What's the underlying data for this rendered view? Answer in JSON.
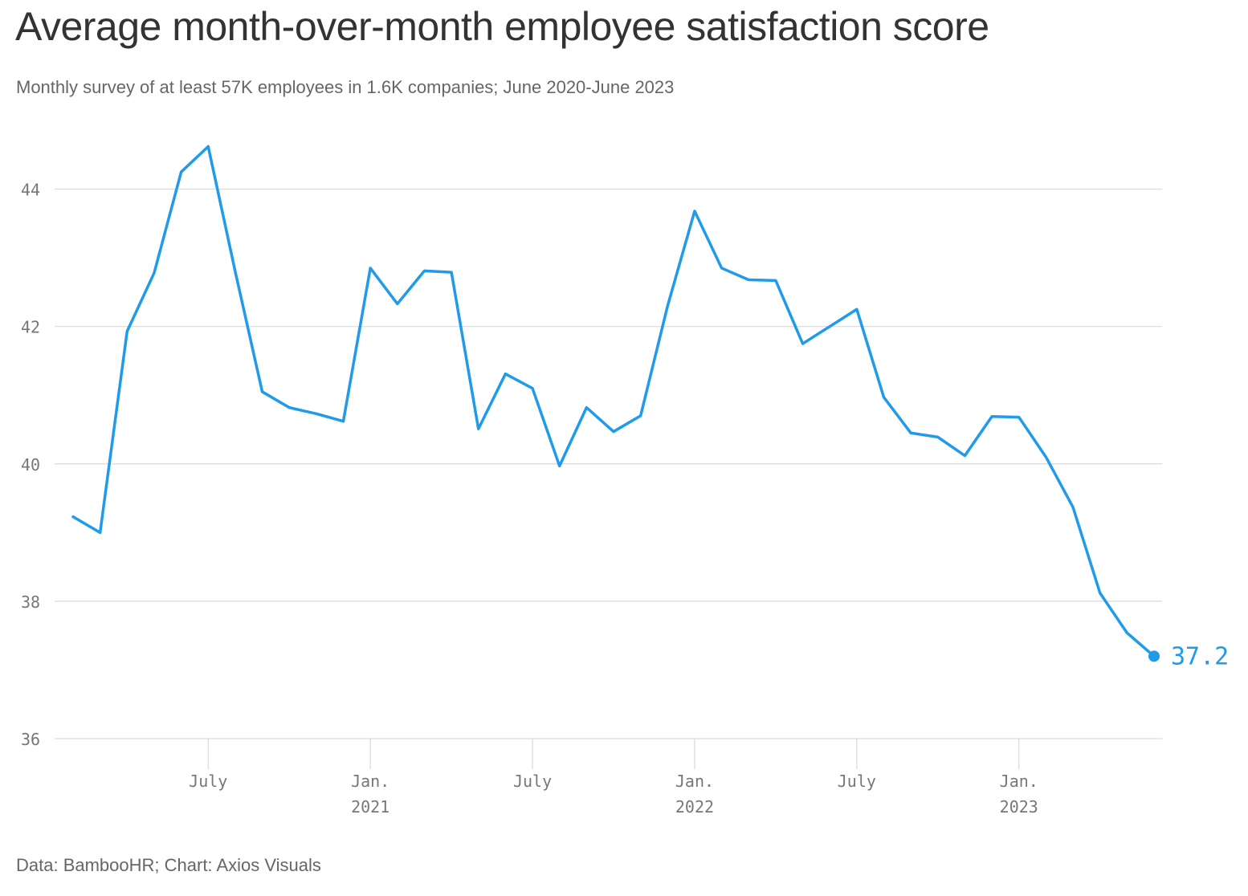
{
  "title": "Average month-over-month employee satisfaction score",
  "subtitle": "Monthly survey of at least 57K employees in 1.6K companies; June 2020-June 2023",
  "source": "Data: BambooHR; Chart: Axios Visuals",
  "colors": {
    "line": "#1f9bea",
    "grid": "#d9d9d9",
    "tick_text": "#777777"
  },
  "chart_data": {
    "type": "line",
    "title": "Average month-over-month employee satisfaction score",
    "xlabel": "",
    "ylabel": "",
    "ylim": [
      36,
      45
    ],
    "y_ticks": [
      36,
      38,
      40,
      42,
      44
    ],
    "grid": "horizontal",
    "x_ticks": [
      {
        "date": "2020-07",
        "label": "July",
        "sublabel": ""
      },
      {
        "date": "2021-01",
        "label": "Jan.",
        "sublabel": "2021"
      },
      {
        "date": "2021-07",
        "label": "July",
        "sublabel": ""
      },
      {
        "date": "2022-01",
        "label": "Jan.",
        "sublabel": "2022"
      },
      {
        "date": "2022-07",
        "label": "July",
        "sublabel": ""
      },
      {
        "date": "2023-01",
        "label": "Jan.",
        "sublabel": "2023"
      }
    ],
    "x": [
      "2020-02",
      "2020-03",
      "2020-04",
      "2020-05",
      "2020-06",
      "2020-07",
      "2020-08",
      "2020-09",
      "2020-10",
      "2020-11",
      "2020-12",
      "2021-01",
      "2021-02",
      "2021-03",
      "2021-04",
      "2021-05",
      "2021-06",
      "2021-07",
      "2021-08",
      "2021-09",
      "2021-10",
      "2021-11",
      "2021-12",
      "2022-01",
      "2022-02",
      "2022-03",
      "2022-04",
      "2022-05",
      "2022-06",
      "2022-07",
      "2022-08",
      "2022-09",
      "2022-10",
      "2022-11",
      "2022-12",
      "2023-01",
      "2023-02",
      "2023-03",
      "2023-04",
      "2023-05",
      "2023-06"
    ],
    "series": [
      {
        "values": [
          39.23,
          39.0,
          41.93,
          42.78,
          44.25,
          44.62,
          42.8,
          41.05,
          40.82,
          40.73,
          40.62,
          42.85,
          42.33,
          42.81,
          42.79,
          40.51,
          41.31,
          41.1,
          39.97,
          40.82,
          40.47,
          40.7,
          42.3,
          43.68,
          42.85,
          42.68,
          42.67,
          41.75,
          42.0,
          42.25,
          40.97,
          40.45,
          40.39,
          40.12,
          40.69,
          40.68,
          40.1,
          39.37,
          38.12,
          37.54,
          37.2
        ]
      }
    ],
    "end_label": "37.2"
  }
}
